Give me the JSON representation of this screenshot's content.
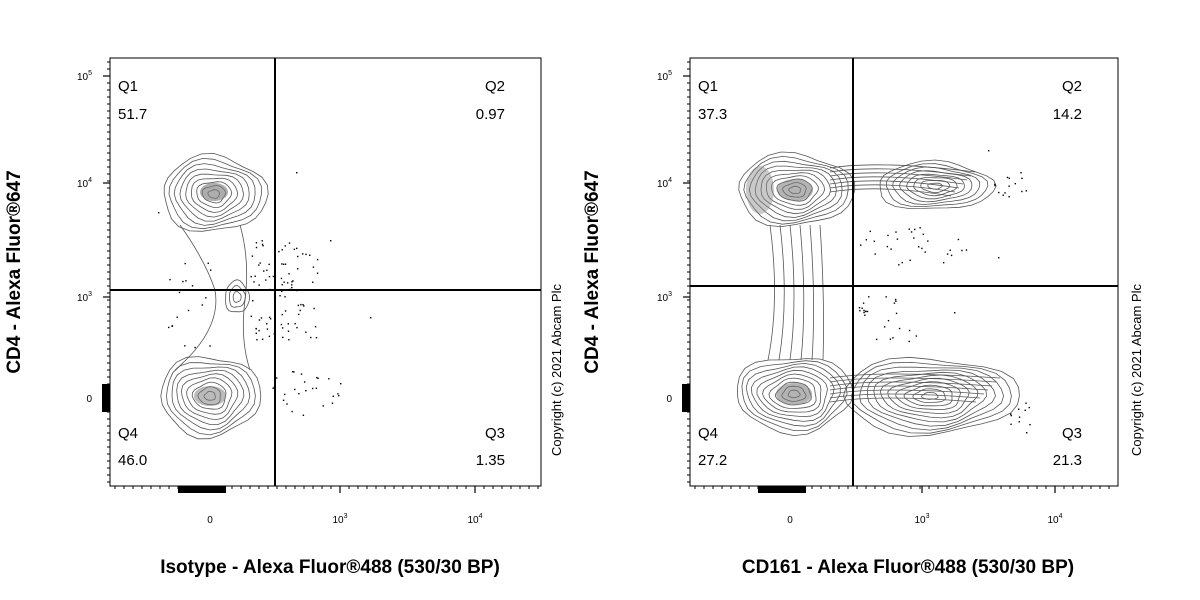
{
  "chart_data": [
    {
      "type": "contour",
      "xlabel": "Isotype - Alexa Fluor®488 (530/30 BP)",
      "ylabel": "CD4 - Alexa Fluor®647",
      "x_ticks": [
        {
          "value": 0,
          "base": "0",
          "exp": ""
        },
        {
          "value": 1000,
          "base": "10",
          "exp": "3"
        },
        {
          "value": 10000,
          "base": "10",
          "exp": "4"
        }
      ],
      "y_ticks": [
        {
          "value": 0,
          "base": "0",
          "exp": ""
        },
        {
          "value": 1000,
          "base": "10",
          "exp": "3"
        },
        {
          "value": 10000,
          "base": "10",
          "exp": "4"
        },
        {
          "value": 100000,
          "base": "10",
          "exp": "5"
        }
      ],
      "gate": {
        "x": 300,
        "y": 1200
      },
      "quadrants": [
        {
          "name": "Q1",
          "value": "51.7",
          "position": "top-left"
        },
        {
          "name": "Q2",
          "value": "0.97",
          "position": "top-right"
        },
        {
          "name": "Q4",
          "value": "46.0",
          "position": "bottom-left"
        },
        {
          "name": "Q3",
          "value": "1.35",
          "position": "bottom-right"
        }
      ],
      "copyright": "Copyright (c) 2021 Abcam Plc"
    },
    {
      "type": "contour",
      "xlabel": "CD161 - Alexa Fluor®488 (530/30 BP)",
      "ylabel": "CD4 - Alexa Fluor®647",
      "x_ticks": [
        {
          "value": 0,
          "base": "0",
          "exp": ""
        },
        {
          "value": 1000,
          "base": "10",
          "exp": "3"
        },
        {
          "value": 10000,
          "base": "10",
          "exp": "4"
        }
      ],
      "y_ticks": [
        {
          "value": 0,
          "base": "0",
          "exp": ""
        },
        {
          "value": 1000,
          "base": "10",
          "exp": "3"
        },
        {
          "value": 10000,
          "base": "10",
          "exp": "4"
        },
        {
          "value": 100000,
          "base": "10",
          "exp": "5"
        }
      ],
      "gate": {
        "x": 300,
        "y": 1200
      },
      "quadrants": [
        {
          "name": "Q1",
          "value": "37.3",
          "position": "top-left"
        },
        {
          "name": "Q2",
          "value": "14.2",
          "position": "top-right"
        },
        {
          "name": "Q4",
          "value": "27.2",
          "position": "bottom-left"
        },
        {
          "name": "Q3",
          "value": "21.3",
          "position": "bottom-right"
        }
      ],
      "copyright": "Copyright (c) 2021 Abcam Plc"
    }
  ]
}
